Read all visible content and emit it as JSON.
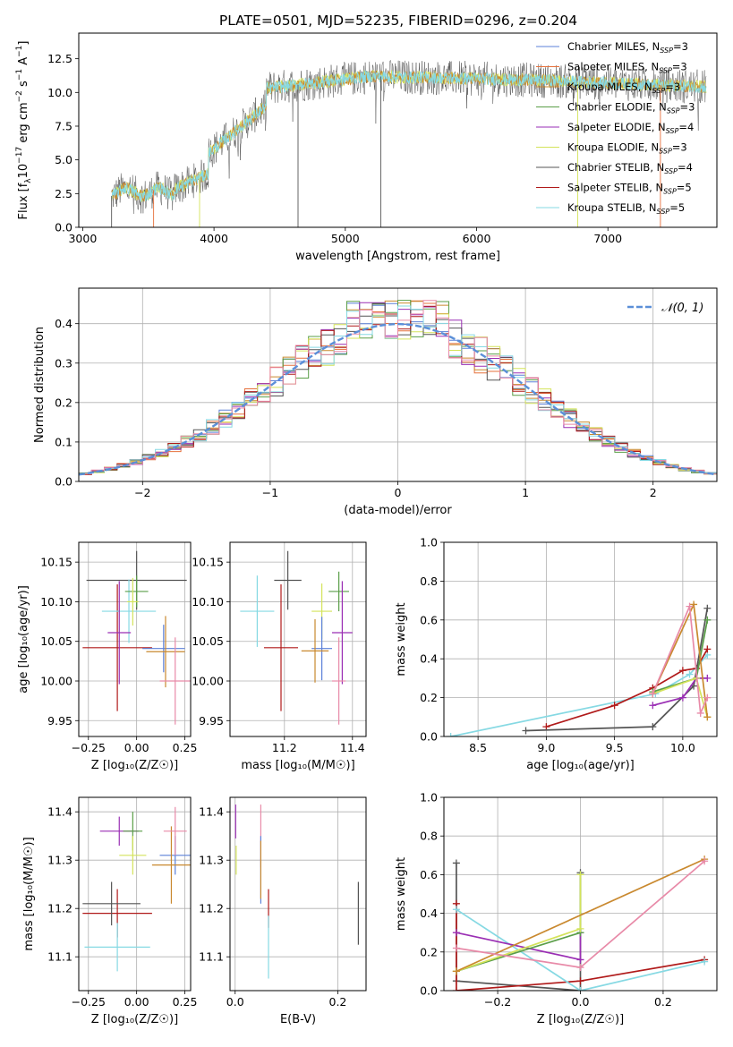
{
  "figure_title": "PLATE=0501, MJD=52235, FIBERID=0296, z=0.204",
  "colors": {
    "Chabrier MILES": "#5b80d8",
    "Salpeter MILES": "#e6703b",
    "Kroupa MILES": "#c9892f",
    "Chabrier ELODIE": "#5a9e48",
    "Salpeter ELODIE": "#9a2eb4",
    "Kroupa ELODIE": "#d4e35b",
    "Chabrier STELIB": "#555555",
    "Salpeter STELIB": "#b01a1a",
    "Kroupa STELIB": "#86d9e3",
    "pink": "#e88aa8",
    "normal_curve": "#5b8fd8"
  },
  "chart_data": [
    {
      "id": "spectrum",
      "type": "line",
      "xlabel": "wavelength [Angstrom, rest frame]",
      "ylabel_html": "Flux [f_λ10^-17 erg cm^-2 s^-1 A^-1]",
      "xlim": [
        2970,
        7830
      ],
      "ylim": [
        0,
        14.4
      ],
      "xticks": [
        3000,
        4000,
        5000,
        6000,
        7000
      ],
      "yticks": [
        0.0,
        2.5,
        5.0,
        7.5,
        10.0,
        12.5
      ],
      "ytick_labels": [
        "0.0",
        "2.5",
        "5.0",
        "7.5",
        "10.0",
        "12.5"
      ],
      "wavelength_range": [
        3220,
        7750
      ],
      "legend_position": "top-right",
      "legend": [
        {
          "label": "Chabrier MILES, N",
          "sub": "SSP",
          "tail": "=3",
          "color_key": "Chabrier MILES"
        },
        {
          "label": "Salpeter MILES, N",
          "sub": "SSP",
          "tail": "=3",
          "color_key": "Salpeter MILES"
        },
        {
          "label": "Kroupa MILES, N",
          "sub": "SSP",
          "tail": "=3",
          "color_key": "Kroupa MILES"
        },
        {
          "label": "Chabrier ELODIE, N",
          "sub": "SSP",
          "tail": "=3",
          "color_key": "Chabrier ELODIE"
        },
        {
          "label": "Salpeter ELODIE, N",
          "sub": "SSP",
          "tail": "=4",
          "color_key": "Salpeter ELODIE"
        },
        {
          "label": "Kroupa ELODIE, N",
          "sub": "SSP",
          "tail": "=3",
          "color_key": "Kroupa ELODIE"
        },
        {
          "label": "Chabrier STELIB, N",
          "sub": "SSP",
          "tail": "=4",
          "color_key": "Chabrier STELIB"
        },
        {
          "label": "Salpeter STELIB, N",
          "sub": "SSP",
          "tail": "=5",
          "color_key": "Salpeter STELIB"
        },
        {
          "label": "Kroupa STELIB, N",
          "sub": "SSP",
          "tail": "=5",
          "color_key": "Kroupa STELIB"
        }
      ]
    },
    {
      "id": "residuals",
      "type": "histogram",
      "xlabel": "(data-model)/error",
      "ylabel": "Normed distribution",
      "xlim": [
        -2.5,
        2.5
      ],
      "ylim": [
        0,
        0.49
      ],
      "xticks": [
        -2,
        -1,
        0,
        1,
        2
      ],
      "xtick_labels": [
        "−2",
        "−1",
        "0",
        "1",
        "2"
      ],
      "yticks": [
        0.0,
        0.1,
        0.2,
        0.3,
        0.4
      ],
      "ytick_labels": [
        "0.0",
        "0.1",
        "0.2",
        "0.3",
        "0.4"
      ],
      "grid": true,
      "bin_width": 0.1,
      "legend_position": "top-right",
      "legend": [
        {
          "label": "𝒩(0, 1)",
          "style": "dashed",
          "color_key": "normal_curve"
        }
      ],
      "series_color_keys": [
        "Chabrier MILES",
        "Salpeter MILES",
        "Kroupa MILES",
        "Chabrier ELODIE",
        "Salpeter ELODIE",
        "Kroupa ELODIE",
        "Chabrier STELIB",
        "Salpeter STELIB",
        "Kroupa STELIB",
        "pink"
      ]
    },
    {
      "id": "age_vs_Z",
      "type": "scatter",
      "xlabel": "Z [log₁₀(Z/Z☉)]",
      "ylabel": "age  [log₁₀(age/yr)]",
      "xlim": [
        -0.3,
        0.28
      ],
      "ylim": [
        9.93,
        10.175
      ],
      "xticks": [
        -0.25,
        0.0,
        0.25
      ],
      "xtick_labels": [
        "−0.25",
        "0.00",
        "0.25"
      ],
      "yticks": [
        9.95,
        10.0,
        10.05,
        10.1,
        10.15
      ],
      "ytick_labels": [
        "9.95",
        "10.00",
        "10.05",
        "10.10",
        "10.15"
      ],
      "grid": true,
      "points": [
        {
          "x": 0.0,
          "y": 10.127,
          "xerr": 0.26,
          "yerr": 0.037,
          "color_key": "Chabrier STELIB"
        },
        {
          "x": -0.1,
          "y": 10.042,
          "xerr": 0.18,
          "yerr": 0.08,
          "color_key": "Salpeter STELIB"
        },
        {
          "x": -0.04,
          "y": 10.088,
          "xerr": 0.14,
          "yerr": 0.04,
          "color_key": "Kroupa STELIB"
        },
        {
          "x": 0.0,
          "y": 10.113,
          "xerr": 0.06,
          "yerr": 0.02,
          "color_key": "Chabrier ELODIE"
        },
        {
          "x": -0.09,
          "y": 10.061,
          "xerr": 0.06,
          "yerr": 0.065,
          "color_key": "Salpeter ELODIE"
        },
        {
          "x": -0.02,
          "y": 10.1,
          "xerr": 0.03,
          "yerr": 0.03,
          "color_key": "Kroupa ELODIE"
        },
        {
          "x": 0.14,
          "y": 10.041,
          "xerr": 0.11,
          "yerr": 0.03,
          "color_key": "Chabrier MILES"
        },
        {
          "x": 0.15,
          "y": 10.037,
          "xerr": 0.1,
          "yerr": 0.045,
          "color_key": "Kroupa MILES"
        },
        {
          "x": 0.2,
          "y": 10.0,
          "xerr": 0.08,
          "yerr": 0.055,
          "color_key": "pink"
        }
      ]
    },
    {
      "id": "age_vs_mass",
      "type": "scatter",
      "xlabel": "mass [log₁₀(M/M☉)]",
      "ylabel": "",
      "xlim": [
        11.04,
        11.44
      ],
      "ylim": [
        9.93,
        10.175
      ],
      "xticks": [
        11.2,
        11.4
      ],
      "xtick_labels": [
        "11.2",
        "11.4"
      ],
      "yticks": [
        9.95,
        10.0,
        10.05,
        10.1,
        10.15
      ],
      "ytick_labels": [
        "9.95",
        "10.00",
        "10.05",
        "10.10",
        "10.15"
      ],
      "grid": true,
      "points": [
        {
          "x": 11.21,
          "y": 10.127,
          "xerr": 0.04,
          "yerr": 0.037,
          "color_key": "Chabrier STELIB"
        },
        {
          "x": 11.19,
          "y": 10.042,
          "xerr": 0.05,
          "yerr": 0.08,
          "color_key": "Salpeter STELIB"
        },
        {
          "x": 11.12,
          "y": 10.088,
          "xerr": 0.05,
          "yerr": 0.045,
          "color_key": "Kroupa STELIB"
        },
        {
          "x": 11.36,
          "y": 10.113,
          "xerr": 0.03,
          "yerr": 0.025,
          "color_key": "Chabrier ELODIE"
        },
        {
          "x": 11.37,
          "y": 10.061,
          "xerr": 0.03,
          "yerr": 0.065,
          "color_key": "Salpeter ELODIE"
        },
        {
          "x": 11.31,
          "y": 10.088,
          "xerr": 0.03,
          "yerr": 0.035,
          "color_key": "Kroupa ELODIE"
        },
        {
          "x": 11.31,
          "y": 10.041,
          "xerr": 0.03,
          "yerr": 0.04,
          "color_key": "Chabrier MILES"
        },
        {
          "x": 11.29,
          "y": 10.038,
          "xerr": 0.04,
          "yerr": 0.04,
          "color_key": "Kroupa MILES"
        },
        {
          "x": 11.36,
          "y": 10.0,
          "xerr": 0.02,
          "yerr": 0.055,
          "color_key": "pink"
        }
      ]
    },
    {
      "id": "weight_vs_age",
      "type": "line",
      "xlabel": "age  [log₁₀(age/yr)]",
      "ylabel": "mass weight",
      "xlim": [
        8.25,
        10.25
      ],
      "ylim": [
        0,
        1.0
      ],
      "xticks": [
        8.5,
        9.0,
        9.5,
        10.0
      ],
      "xtick_labels": [
        "8.5",
        "9.0",
        "9.5",
        "10.0"
      ],
      "yticks": [
        0.0,
        0.2,
        0.4,
        0.6,
        0.8,
        1.0
      ],
      "ytick_labels": [
        "0.0",
        "0.2",
        "0.4",
        "0.6",
        "0.8",
        "1.0"
      ],
      "grid": true,
      "series": [
        {
          "color_key": "Kroupa STELIB",
          "x": [
            8.3,
            9.8,
            10.05,
            10.18
          ],
          "y": [
            0.0,
            0.22,
            0.32,
            0.42
          ]
        },
        {
          "color_key": "Salpeter STELIB",
          "x": [
            9.0,
            9.5,
            9.78,
            10.0,
            10.1,
            10.18
          ],
          "y": [
            0.05,
            0.16,
            0.25,
            0.34,
            0.35,
            0.45
          ]
        },
        {
          "color_key": "Chabrier STELIB",
          "x": [
            8.85,
            9.78,
            10.08,
            10.18
          ],
          "y": [
            0.03,
            0.05,
            0.26,
            0.66
          ]
        },
        {
          "color_key": "Salpeter ELODIE",
          "x": [
            9.78,
            10.0,
            10.1,
            10.18
          ],
          "y": [
            0.16,
            0.2,
            0.3,
            0.3
          ]
        },
        {
          "color_key": "Chabrier ELODIE",
          "x": [
            9.78,
            10.1,
            10.18
          ],
          "y": [
            0.23,
            0.3,
            0.6
          ]
        },
        {
          "color_key": "Kroupa ELODIE",
          "x": [
            9.78,
            10.1,
            10.18
          ],
          "y": [
            0.22,
            0.3,
            0.1
          ]
        },
        {
          "color_key": "Kroupa MILES",
          "x": [
            9.78,
            10.08,
            10.18
          ],
          "y": [
            0.22,
            0.68,
            0.1
          ]
        },
        {
          "color_key": "pink",
          "x": [
            9.78,
            10.05,
            10.13,
            10.18
          ],
          "y": [
            0.22,
            0.67,
            0.12,
            0.2
          ]
        }
      ]
    },
    {
      "id": "mass_vs_Z",
      "type": "scatter",
      "xlabel": "Z [log₁₀(Z/Z☉)]",
      "ylabel": "mass [log₁₀(M/M☉)]",
      "xlim": [
        -0.3,
        0.28
      ],
      "ylim": [
        11.03,
        11.43
      ],
      "xticks": [
        -0.25,
        0.0,
        0.25
      ],
      "xtick_labels": [
        "−0.25",
        "0.00",
        "0.25"
      ],
      "yticks": [
        11.1,
        11.2,
        11.3,
        11.4
      ],
      "ytick_labels": [
        "11.1",
        "11.2",
        "11.3",
        "11.4"
      ],
      "grid": true,
      "points": [
        {
          "x": -0.1,
          "y": 11.19,
          "xerr": 0.18,
          "yerr": 0.05,
          "color_key": "Salpeter STELIB"
        },
        {
          "x": -0.13,
          "y": 11.21,
          "xerr": 0.15,
          "yerr": 0.045,
          "color_key": "Chabrier STELIB"
        },
        {
          "x": -0.1,
          "y": 11.12,
          "xerr": 0.17,
          "yerr": 0.05,
          "color_key": "Kroupa STELIB"
        },
        {
          "x": -0.09,
          "y": 11.36,
          "xerr": 0.1,
          "yerr": 0.03,
          "color_key": "Salpeter ELODIE"
        },
        {
          "x": -0.02,
          "y": 11.36,
          "xerr": 0.05,
          "yerr": 0.04,
          "color_key": "Chabrier ELODIE"
        },
        {
          "x": -0.02,
          "y": 11.31,
          "xerr": 0.07,
          "yerr": 0.04,
          "color_key": "Kroupa ELODIE"
        },
        {
          "x": 0.2,
          "y": 11.31,
          "xerr": 0.08,
          "yerr": 0.04,
          "color_key": "Chabrier MILES"
        },
        {
          "x": 0.18,
          "y": 11.29,
          "xerr": 0.1,
          "yerr": 0.08,
          "color_key": "Kroupa MILES"
        },
        {
          "x": 0.2,
          "y": 11.36,
          "xerr": 0.06,
          "yerr": 0.05,
          "color_key": "pink"
        }
      ]
    },
    {
      "id": "mass_vs_ebv",
      "type": "scatter",
      "xlabel": "E(B-V)",
      "ylabel": "",
      "xlim": [
        -0.01,
        0.255
      ],
      "ylim": [
        11.03,
        11.43
      ],
      "xticks": [
        0.0,
        0.2
      ],
      "xtick_labels": [
        "0.0",
        "0.2"
      ],
      "yticks": [
        11.1,
        11.2,
        11.3,
        11.4
      ],
      "ytick_labels": [
        "11.1",
        "11.2",
        "11.3",
        "11.4"
      ],
      "grid": true,
      "points": [
        {
          "x": 0.001,
          "y": 11.38,
          "yerr": 0.035,
          "color_key": "Salpeter ELODIE"
        },
        {
          "x": 0.002,
          "y": 11.3,
          "yerr": 0.03,
          "color_key": "Kroupa ELODIE"
        },
        {
          "x": 0.05,
          "y": 11.35,
          "yerr": 0.065,
          "color_key": "pink"
        },
        {
          "x": 0.05,
          "y": 11.28,
          "yerr": 0.07,
          "color_key": "Chabrier MILES"
        },
        {
          "x": 0.05,
          "y": 11.28,
          "yerr": 0.06,
          "color_key": "Kroupa MILES"
        },
        {
          "x": 0.065,
          "y": 11.2,
          "yerr": 0.04,
          "color_key": "Salpeter STELIB"
        },
        {
          "x": 0.065,
          "y": 11.12,
          "yerr": 0.065,
          "color_key": "Kroupa STELIB"
        },
        {
          "x": 0.24,
          "y": 11.19,
          "yerr": 0.065,
          "color_key": "Chabrier STELIB"
        }
      ]
    },
    {
      "id": "weight_vs_Z",
      "type": "line",
      "xlabel": "Z [log₁₀(Z/Z☉)]",
      "ylabel": "mass weight",
      "xlim": [
        -0.33,
        0.33
      ],
      "ylim": [
        0,
        1.0
      ],
      "xticks": [
        -0.2,
        0.0,
        0.2
      ],
      "xtick_labels": [
        "−0.2",
        "0.0",
        "0.2"
      ],
      "yticks": [
        0.0,
        0.2,
        0.4,
        0.6,
        0.8,
        1.0
      ],
      "ytick_labels": [
        "0.0",
        "0.2",
        "0.4",
        "0.6",
        "0.8",
        "1.0"
      ],
      "grid": true,
      "series": [
        {
          "color_key": "Chabrier STELIB",
          "x": [
            -0.3,
            -0.3,
            0.0,
            0.0
          ],
          "y": [
            0.66,
            0.05,
            0.0,
            0.61
          ]
        },
        {
          "color_key": "Salpeter STELIB",
          "x": [
            -0.3,
            -0.3,
            0.0,
            0.3
          ],
          "y": [
            0.45,
            0.0,
            0.05,
            0.16
          ]
        },
        {
          "color_key": "Kroupa STELIB",
          "x": [
            -0.3,
            0.0,
            0.3
          ],
          "y": [
            0.42,
            0.0,
            0.15
          ]
        },
        {
          "color_key": "Salpeter ELODIE",
          "x": [
            -0.3,
            0.0,
            0.0
          ],
          "y": [
            0.3,
            0.16,
            0.3
          ]
        },
        {
          "color_key": "Chabrier ELODIE",
          "x": [
            -0.3,
            0.0,
            0.0
          ],
          "y": [
            0.1,
            0.3,
            0.6
          ]
        },
        {
          "color_key": "Kroupa ELODIE",
          "x": [
            -0.3,
            0.0,
            0.0
          ],
          "y": [
            0.1,
            0.32,
            0.6
          ]
        },
        {
          "color_key": "Kroupa MILES",
          "x": [
            -0.3,
            0.3
          ],
          "y": [
            0.1,
            0.68
          ]
        },
        {
          "color_key": "pink",
          "x": [
            -0.3,
            0.0,
            0.3
          ],
          "y": [
            0.22,
            0.12,
            0.67
          ]
        }
      ]
    }
  ]
}
